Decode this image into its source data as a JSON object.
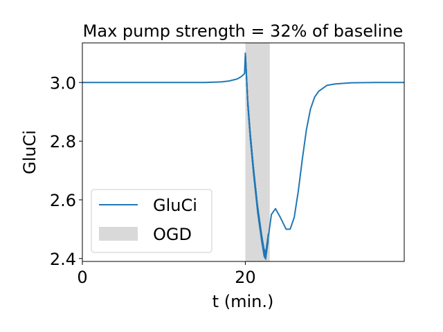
{
  "chart_data": {
    "type": "line",
    "title": "Max pump strength $=$ 32% of baseline",
    "title_display": "Max pump strength = 32% of baseline",
    "xlabel": "t (min.)",
    "ylabel": "GluCi",
    "xlim": [
      0,
      39.5
    ],
    "ylim": [
      2.39,
      3.135
    ],
    "xticks": [
      0,
      20
    ],
    "xtick_labels": [
      "0",
      "20"
    ],
    "yticks": [
      2.4,
      2.6,
      2.8,
      3.0
    ],
    "ytick_labels": [
      "2.4",
      "2.6",
      "2.8",
      "3.0"
    ],
    "grid": false,
    "legend_position": "lower-left",
    "shaded_region": {
      "name": "OGD",
      "x_start": 20,
      "x_end": 23,
      "color": "#d9d9d9"
    },
    "series": [
      {
        "name": "GluCi",
        "color": "#1f77b4",
        "x": [
          0,
          5,
          10,
          15,
          17,
          18,
          19,
          19.5,
          19.9,
          20.0,
          20.3,
          20.6,
          21.0,
          21.5,
          22.0,
          22.3,
          22.5,
          22.8,
          23.2,
          23.7,
          24.3,
          25.0,
          25.5,
          26.0,
          26.5,
          27.0,
          27.5,
          28.0,
          28.5,
          29.0,
          30.0,
          31.0,
          33.0,
          36.0,
          39.5
        ],
        "values": [
          3.0,
          3.0,
          3.0,
          3.0,
          3.002,
          3.005,
          3.012,
          3.02,
          3.03,
          3.1,
          2.93,
          2.82,
          2.7,
          2.57,
          2.47,
          2.42,
          2.41,
          2.47,
          2.55,
          2.57,
          2.54,
          2.5,
          2.5,
          2.54,
          2.63,
          2.74,
          2.84,
          2.91,
          2.95,
          2.97,
          2.99,
          2.995,
          2.999,
          3.0,
          3.0
        ]
      }
    ],
    "oscillation": {
      "x_start": 20.0,
      "x_end": 22.8,
      "amplitude": 0.012
    }
  }
}
